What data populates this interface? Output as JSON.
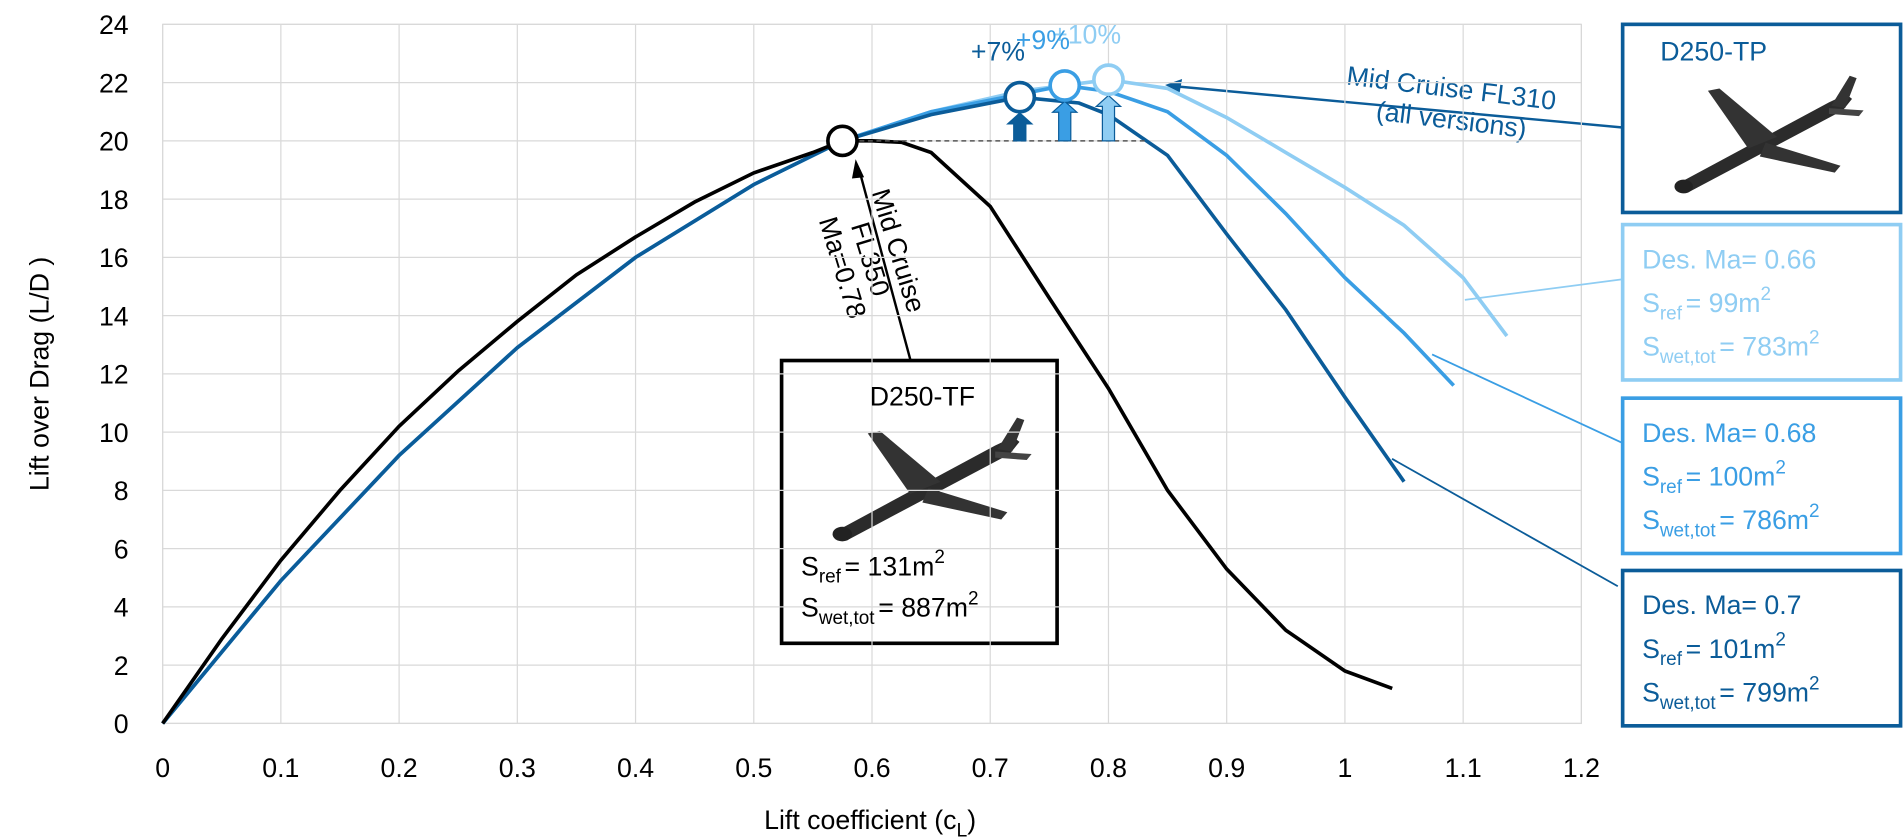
{
  "chart_data": {
    "type": "line",
    "xlabel": [
      "Lift coefficient (c",
      "L",
      ")"
    ],
    "ylabel": "Lift over Drag (L/D )",
    "xlim": [
      0,
      1.2
    ],
    "xticks": [
      0,
      0.1,
      0.2,
      0.3,
      0.4,
      0.5,
      0.6,
      0.7,
      0.8,
      0.9,
      1,
      1.1,
      1.2
    ],
    "ylim": [
      0,
      24
    ],
    "yticks": [
      0,
      2,
      4,
      6,
      8,
      10,
      12,
      14,
      16,
      18,
      20,
      22,
      24
    ],
    "grid": true,
    "series": [
      {
        "name": "D250-TF",
        "color": "#000000",
        "x": [
          0,
          0.05,
          0.1,
          0.15,
          0.2,
          0.25,
          0.3,
          0.35,
          0.4,
          0.45,
          0.5,
          0.55,
          0.575,
          0.6,
          0.625,
          0.65,
          0.7,
          0.75,
          0.8,
          0.85,
          0.9,
          0.95,
          1,
          1.04
        ],
        "values": [
          0,
          2.9,
          5.6,
          8,
          10.2,
          12.1,
          13.8,
          15.4,
          16.7,
          17.9,
          18.9,
          19.6,
          20,
          20,
          19.95,
          19.6,
          17.75,
          14.6,
          11.5,
          8,
          5.3,
          3.2,
          1.8,
          1.2
        ],
        "s_ref": [
          "S",
          "ref",
          "= 131m",
          "2"
        ],
        "s_wet": [
          "S",
          "wet,tot",
          "= 887m",
          "2"
        ]
      },
      {
        "name": "Des. Ma= 0.7",
        "color": "#0b5c99",
        "peak_label": "+7%",
        "x": [
          0,
          0.1,
          0.2,
          0.3,
          0.4,
          0.5,
          0.575,
          0.65,
          0.725,
          0.775,
          0.8,
          0.85,
          0.9,
          0.95,
          1,
          1.05
        ],
        "values": [
          0,
          4.9,
          9.2,
          12.9,
          16,
          18.5,
          20,
          20.9,
          21.5,
          21.3,
          20.9,
          19.5,
          16.8,
          14.2,
          11.2,
          8.3
        ],
        "s_ref": [
          "S",
          "ref",
          "= 101m",
          "2"
        ],
        "s_wet": [
          "S",
          "wet,tot",
          "= 799m",
          "2"
        ]
      },
      {
        "name": "Des. Ma= 0.68",
        "color": "#3a9ee4",
        "peak_label": "+9%",
        "x": [
          0,
          0.1,
          0.2,
          0.3,
          0.4,
          0.5,
          0.575,
          0.65,
          0.725,
          0.763,
          0.8,
          0.85,
          0.9,
          0.95,
          1,
          1.05,
          1.092
        ],
        "values": [
          0,
          4.9,
          9.2,
          12.9,
          16,
          18.5,
          20,
          21,
          21.6,
          21.9,
          21.7,
          21,
          19.5,
          17.5,
          15.3,
          13.4,
          11.6
        ],
        "s_ref": [
          "S",
          "ref",
          "= 100m",
          "2"
        ],
        "s_wet": [
          "S",
          "wet,tot",
          "= 786m",
          "2"
        ]
      },
      {
        "name": "Des. Ma= 0.66",
        "color": "#8fcdf3",
        "peak_label": "+10%",
        "x": [
          0,
          0.1,
          0.2,
          0.3,
          0.4,
          0.5,
          0.575,
          0.65,
          0.725,
          0.8,
          0.85,
          0.9,
          0.95,
          1,
          1.05,
          1.1,
          1.137
        ],
        "values": [
          0,
          4.9,
          9.2,
          12.9,
          16,
          18.5,
          20,
          21,
          21.7,
          22.1,
          21.8,
          20.8,
          19.6,
          18.4,
          17.1,
          15.3,
          13.3
        ],
        "s_ref": [
          "S",
          "ref",
          "= 99m",
          "2"
        ],
        "s_wet": [
          "S",
          "wet,tot",
          "= 783m",
          "2"
        ]
      }
    ],
    "annotations": {
      "tp_box_title": "D250-TP",
      "fl310": [
        "Mid Cruise FL310",
        "(all versions)"
      ],
      "fl350": [
        "Mid Cruise",
        "FL350",
        "Ma=0.78"
      ]
    }
  }
}
